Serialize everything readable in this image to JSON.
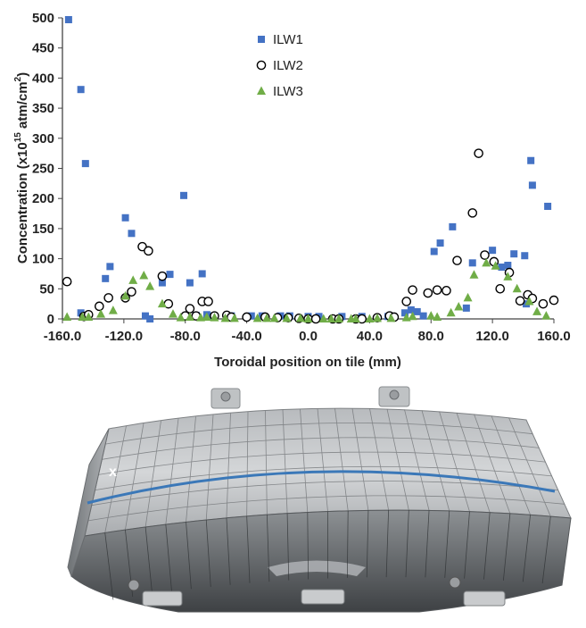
{
  "chart_data": {
    "type": "scatter",
    "title": "",
    "xlabel": "Toroidal position on tile (mm)",
    "ylabel_main": "Concentration (x10",
    "ylabel_sup": "15",
    "ylabel_mid": " atm/cm",
    "ylabel_sup2": "2",
    "ylabel_end": ")",
    "xlim": [
      -160,
      160
    ],
    "ylim": [
      0,
      500
    ],
    "x_ticks": [
      -160,
      -120,
      -80,
      -40,
      0,
      40,
      80,
      120,
      160
    ],
    "x_tick_labels": [
      "-160.0",
      "-120.0",
      "-80.0",
      "-40.0",
      "0.0",
      "40.0",
      "80.0",
      "120.0",
      "160.0"
    ],
    "y_ticks": [
      0,
      50,
      100,
      150,
      200,
      250,
      300,
      350,
      400,
      450,
      500
    ],
    "y_tick_labels": [
      "0",
      "50",
      "100",
      "150",
      "200",
      "250",
      "300",
      "350",
      "400",
      "450",
      "500"
    ],
    "grid": false,
    "legend_position": "top-center",
    "series": [
      {
        "name": "ILW1",
        "marker": "square",
        "color": "#4472C4",
        "points": [
          [
            -156,
            497
          ],
          [
            -148,
            381
          ],
          [
            -145,
            258
          ],
          [
            -148,
            10
          ],
          [
            -132,
            67
          ],
          [
            -129,
            87
          ],
          [
            -119,
            168
          ],
          [
            -115,
            142
          ],
          [
            -106,
            5
          ],
          [
            -103,
            0
          ],
          [
            -95,
            60
          ],
          [
            -90,
            74
          ],
          [
            -81,
            205
          ],
          [
            -77,
            60
          ],
          [
            -73,
            6
          ],
          [
            -69,
            75
          ],
          [
            -66,
            7
          ],
          [
            -62,
            5
          ],
          [
            -50,
            5
          ],
          [
            -37,
            5
          ],
          [
            -30,
            5
          ],
          [
            -18,
            5
          ],
          [
            -12,
            5
          ],
          [
            0,
            4
          ],
          [
            7,
            4
          ],
          [
            22,
            4
          ],
          [
            35,
            4
          ],
          [
            52,
            4
          ],
          [
            63,
            10
          ],
          [
            67,
            15
          ],
          [
            71,
            12
          ],
          [
            75,
            5
          ],
          [
            82,
            112
          ],
          [
            86,
            126
          ],
          [
            94,
            153
          ],
          [
            103,
            18
          ],
          [
            107,
            93
          ],
          [
            115,
            106
          ],
          [
            120,
            114
          ],
          [
            126,
            86
          ],
          [
            130,
            89
          ],
          [
            134,
            108
          ],
          [
            141,
            105
          ],
          [
            145,
            263
          ],
          [
            146,
            222
          ],
          [
            156,
            187
          ],
          [
            142,
            25
          ]
        ]
      },
      {
        "name": "ILW2",
        "marker": "circle",
        "color": "#000000",
        "points": [
          [
            -157,
            62
          ],
          [
            -146,
            4
          ],
          [
            -143,
            7
          ],
          [
            -136,
            21
          ],
          [
            -130,
            35
          ],
          [
            -119,
            35
          ],
          [
            -115,
            45
          ],
          [
            -108,
            120
          ],
          [
            -104,
            113
          ],
          [
            -95,
            71
          ],
          [
            -91,
            25
          ],
          [
            -80,
            5
          ],
          [
            -77,
            17
          ],
          [
            -73,
            5
          ],
          [
            -69,
            29
          ],
          [
            -65,
            29
          ],
          [
            -61,
            5
          ],
          [
            -53,
            6
          ],
          [
            -50,
            3
          ],
          [
            -40,
            3
          ],
          [
            -28,
            3
          ],
          [
            -20,
            2
          ],
          [
            -13,
            2
          ],
          [
            -6,
            1
          ],
          [
            0,
            0
          ],
          [
            5,
            0
          ],
          [
            16,
            0
          ],
          [
            20,
            0
          ],
          [
            31,
            0
          ],
          [
            35,
            0
          ],
          [
            45,
            2
          ],
          [
            53,
            5
          ],
          [
            56,
            3
          ],
          [
            64,
            29
          ],
          [
            68,
            48
          ],
          [
            78,
            43
          ],
          [
            84,
            48
          ],
          [
            90,
            47
          ],
          [
            97,
            97
          ],
          [
            107,
            176
          ],
          [
            111,
            275
          ],
          [
            115,
            106
          ],
          [
            121,
            95
          ],
          [
            125,
            50
          ],
          [
            131,
            77
          ],
          [
            138,
            30
          ],
          [
            143,
            40
          ],
          [
            146,
            34
          ],
          [
            153,
            25
          ],
          [
            160,
            31
          ]
        ]
      },
      {
        "name": "ILW3",
        "marker": "triangle",
        "color": "#70AD47",
        "points": [
          [
            -157,
            3
          ],
          [
            -147,
            3
          ],
          [
            -143,
            3
          ],
          [
            -135,
            8
          ],
          [
            -127,
            14
          ],
          [
            -119,
            38
          ],
          [
            -114,
            64
          ],
          [
            -107,
            72
          ],
          [
            -103,
            54
          ],
          [
            -95,
            25
          ],
          [
            -88,
            8
          ],
          [
            -83,
            2
          ],
          [
            -77,
            3
          ],
          [
            -70,
            2
          ],
          [
            -66,
            3
          ],
          [
            -61,
            2
          ],
          [
            -54,
            1
          ],
          [
            -48,
            1
          ],
          [
            -33,
            1
          ],
          [
            -27,
            1
          ],
          [
            -22,
            1
          ],
          [
            -14,
            1
          ],
          [
            -5,
            1
          ],
          [
            0,
            0
          ],
          [
            10,
            0
          ],
          [
            15,
            0
          ],
          [
            20,
            0
          ],
          [
            28,
            0
          ],
          [
            31,
            0
          ],
          [
            40,
            0
          ],
          [
            45,
            1
          ],
          [
            54,
            1
          ],
          [
            64,
            2
          ],
          [
            68,
            4
          ],
          [
            80,
            5
          ],
          [
            84,
            3
          ],
          [
            93,
            10
          ],
          [
            98,
            20
          ],
          [
            104,
            35
          ],
          [
            108,
            73
          ],
          [
            116,
            93
          ],
          [
            122,
            88
          ],
          [
            130,
            70
          ],
          [
            136,
            50
          ],
          [
            144,
            29
          ],
          [
            149,
            12
          ],
          [
            155,
            5
          ]
        ]
      }
    ]
  },
  "photo": {
    "marker_label": "x",
    "colors": {
      "tile_light": "#c9ccce",
      "tile_mid": "#9ea2a5",
      "tile_dark": "#4a4d50",
      "line": "#3b78b8",
      "bracket": "#b9bcbe"
    }
  }
}
